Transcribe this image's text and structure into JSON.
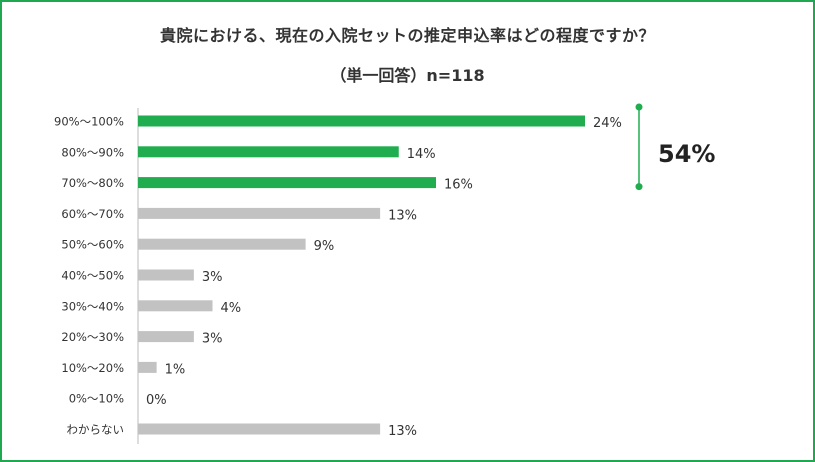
{
  "chart_data": {
    "type": "bar",
    "orientation": "horizontal",
    "title": "貴院における、現在の入院セットの推定申込率はどの程度ですか？",
    "subtitle": "（単一回答）n=118",
    "categories": [
      "90%〜100%",
      "80%〜90%",
      "70%〜80%",
      "60%〜70%",
      "50%〜60%",
      "40%〜50%",
      "30%〜40%",
      "20%〜30%",
      "10%〜20%",
      "0%〜10%",
      "わからない"
    ],
    "values": [
      24,
      14,
      16,
      13,
      9,
      3,
      4,
      3,
      1,
      0,
      13
    ],
    "value_labels": [
      "24%",
      "14%",
      "16%",
      "13%",
      "9%",
      "3%",
      "4%",
      "3%",
      "1%",
      "0%",
      "13%"
    ],
    "highlight_count": 3,
    "highlight_color": "#1fad4f",
    "base_color": "#c2c2c2",
    "xlim": [
      0,
      27
    ],
    "grid": false,
    "bracket_label": "54%"
  }
}
